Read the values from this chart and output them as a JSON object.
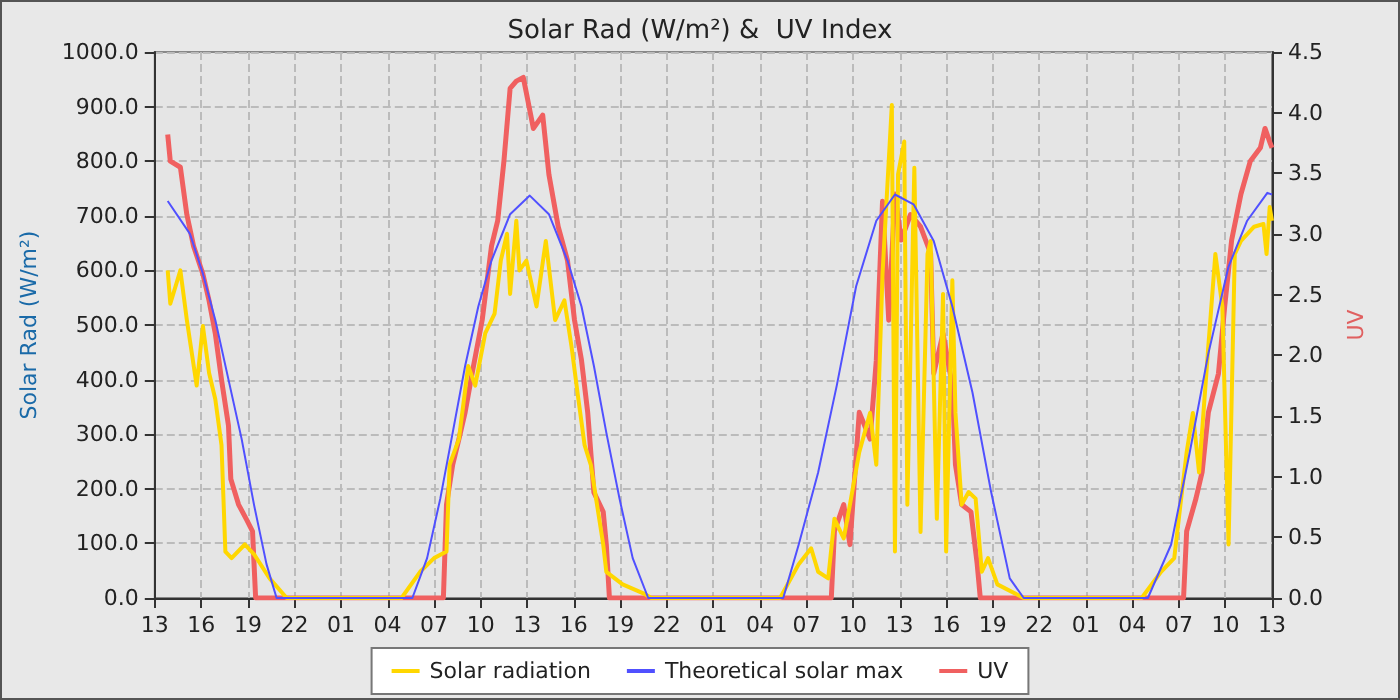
{
  "chart_data": {
    "type": "line",
    "title": "Solar Rad (W/m²) &  UV Index",
    "ylabel": "Solar Rad (W/m²)",
    "y2label": "UV",
    "xlim": [
      "--01-01T13:00",
      "--01-04T13:00"
    ],
    "xticks": [
      {
        "value": "--01-01T13:00",
        "label": "13"
      },
      {
        "value": "--01-01T16:00",
        "label": "16"
      },
      {
        "value": "--01-01T19:00",
        "label": "19"
      },
      {
        "value": "--01-01T22:00",
        "label": "22"
      },
      {
        "value": "--01-02T01:00",
        "label": "01"
      },
      {
        "value": "--01-02T04:00",
        "label": "04"
      },
      {
        "value": "--01-02T07:00",
        "label": "07"
      },
      {
        "value": "--01-02T10:00",
        "label": "10"
      },
      {
        "value": "--01-02T13:00",
        "label": "13"
      },
      {
        "value": "--01-02T16:00",
        "label": "16"
      },
      {
        "value": "--01-02T19:00",
        "label": "19"
      },
      {
        "value": "--01-02T22:00",
        "label": "22"
      },
      {
        "value": "--01-03T01:00",
        "label": "01"
      },
      {
        "value": "--01-03T04:00",
        "label": "04"
      },
      {
        "value": "--01-03T07:00",
        "label": "07"
      },
      {
        "value": "--01-03T10:00",
        "label": "10"
      },
      {
        "value": "--01-03T13:00",
        "label": "13"
      },
      {
        "value": "--01-03T16:00",
        "label": "16"
      },
      {
        "value": "--01-03T19:00",
        "label": "19"
      },
      {
        "value": "--01-03T22:00",
        "label": "22"
      },
      {
        "value": "--01-04T01:00",
        "label": "01"
      },
      {
        "value": "--01-04T04:00",
        "label": "04"
      },
      {
        "value": "--01-04T07:00",
        "label": "07"
      },
      {
        "value": "--01-04T10:00",
        "label": "10"
      },
      {
        "value": "--01-04T13:00",
        "label": "13"
      }
    ],
    "ylim": [
      0,
      1000
    ],
    "yticks": [
      {
        "value": 0,
        "label": "0.0"
      },
      {
        "value": 100,
        "label": "100.0"
      },
      {
        "value": 200,
        "label": "200.0"
      },
      {
        "value": 300,
        "label": "300.0"
      },
      {
        "value": 400,
        "label": "400.0"
      },
      {
        "value": 500,
        "label": "500.0"
      },
      {
        "value": 600,
        "label": "600.0"
      },
      {
        "value": 700,
        "label": "700.0"
      },
      {
        "value": 800,
        "label": "800.0"
      },
      {
        "value": 900,
        "label": "900.0"
      },
      {
        "value": 1000,
        "label": "1000.0"
      }
    ],
    "y2lim": [
      0,
      4.5
    ],
    "y2ticks": [
      {
        "value": 0,
        "label": "0.0"
      },
      {
        "value": 0.5,
        "label": "0.5"
      },
      {
        "value": 1,
        "label": "1.0"
      },
      {
        "value": 1.5,
        "label": "1.5"
      },
      {
        "value": 2,
        "label": "2.0"
      },
      {
        "value": 2.5,
        "label": "2.5"
      },
      {
        "value": 3,
        "label": "3.0"
      },
      {
        "value": 3.5,
        "label": "3.5"
      },
      {
        "value": 4,
        "label": "4.0"
      },
      {
        "value": 4.5,
        "label": "4.5"
      }
    ],
    "grid": true,
    "legend": "bottom",
    "marker": "none",
    "line_style": "solid",
    "series": [
      {
        "name": "Solar radiation",
        "color": "#ffd700",
        "x": [
          "--01-01T13:50",
          "--01-01T14:00",
          "--01-01T14:39",
          "--01-01T15:04",
          "--01-01T15:42",
          "--01-01T16:06",
          "--01-01T16:30",
          "--01-01T16:54",
          "--01-01T17:18",
          "--01-01T17:33",
          "--01-01T17:57",
          "--01-01T18:48",
          "--01-01T19:24",
          "--01-01T20:24",
          "--01-01T21:30",
          "--01-02T04:54",
          "--01-02T06:06",
          "--01-02T07:00",
          "--01-02T07:48",
          "--01-02T08:00",
          "--01-02T08:36",
          "--01-02T09:12",
          "--01-02T09:39",
          "--01-02T10:18",
          "--01-02T10:54",
          "--01-02T11:18",
          "--01-02T11:42",
          "--01-02T11:54",
          "--01-02T12:18",
          "--01-02T12:30",
          "--01-02T12:57",
          "--01-02T13:36",
          "--01-02T14:12",
          "--01-02T14:48",
          "--01-02T15:24",
          "--01-02T15:51",
          "--01-02T16:18",
          "--01-02T16:42",
          "--01-02T17:06",
          "--01-02T17:30",
          "--01-02T17:54",
          "--01-02T18:06",
          "--01-02T19:09",
          "--01-02T20:36",
          "--01-02T21:00",
          "--01-03T05:18",
          "--01-03T06:30",
          "--01-03T07:18",
          "--01-03T07:45",
          "--01-03T08:24",
          "--01-03T08:48",
          "--01-03T09:24",
          "--01-03T09:48",
          "--01-03T10:24",
          "--01-03T11:06",
          "--01-03T11:30",
          "--01-03T11:54",
          "--01-03T12:30",
          "--01-03T12:42",
          "--01-03T12:54",
          "--01-03T13:18",
          "--01-03T13:30",
          "--01-03T13:57",
          "--01-03T14:21",
          "--01-03T14:48",
          "--01-03T15:00",
          "--01-03T15:24",
          "--01-03T15:48",
          "--01-03T16:00",
          "--01-03T16:24",
          "--01-03T16:36",
          "--01-03T17:00",
          "--01-03T17:27",
          "--01-03T17:54",
          "--01-03T18:18",
          "--01-03T18:42",
          "--01-03T19:18",
          "--01-03T21:00",
          "--01-04T04:36",
          "--01-04T05:51",
          "--01-04T06:42",
          "--01-04T07:06",
          "--01-04T07:30",
          "--01-04T07:54",
          "--01-04T08:18",
          "--01-04T08:54",
          "--01-04T09:21",
          "--01-04T09:48",
          "--01-04T10:12",
          "--01-04T10:36",
          "--01-04T11:00",
          "--01-04T11:51",
          "--01-04T12:27",
          "--01-04T12:39",
          "--01-04T12:51",
          "--01-04T13:00"
        ],
        "values": [
          600,
          539,
          600,
          509,
          389,
          498,
          412,
          364,
          280,
          85,
          73,
          98,
          80,
          36,
          0,
          0,
          48,
          73,
          85,
          244,
          291,
          425,
          389,
          485,
          521,
          618,
          667,
          557,
          691,
          600,
          618,
          534,
          654,
          509,
          545,
          462,
          364,
          280,
          244,
          171,
          98,
          48,
          25,
          7,
          0,
          0,
          62,
          91,
          48,
          36,
          145,
          109,
          171,
          267,
          339,
          244,
          594,
          903,
          85,
          776,
          836,
          171,
          788,
          121,
          630,
          654,
          145,
          557,
          85,
          582,
          339,
          171,
          194,
          182,
          48,
          73,
          25,
          0,
          0,
          48,
          73,
          171,
          267,
          339,
          230,
          462,
          630,
          534,
          98,
          630,
          654,
          680,
          685,
          630,
          716,
          691
        ]
      },
      {
        "name": "Theoretical solar max",
        "color": "#5050ff",
        "x": [
          "--01-01T13:50",
          "--01-01T15:16",
          "--01-01T16:06",
          "--01-01T16:54",
          "--01-01T17:45",
          "--01-01T18:36",
          "--01-01T19:24",
          "--01-01T20:12",
          "--01-01T20:51",
          "--01-02T05:36",
          "--01-02T06:33",
          "--01-02T07:24",
          "--01-02T08:12",
          "--01-02T09:00",
          "--01-02T09:51",
          "--01-02T10:42",
          "--01-02T11:54",
          "--01-02T13:10",
          "--01-02T14:24",
          "--01-02T15:36",
          "--01-02T16:30",
          "--01-02T17:18",
          "--01-02T18:06",
          "--01-02T18:57",
          "--01-02T19:48",
          "--01-02T20:48",
          "--01-03T05:30",
          "--01-03T06:30",
          "--01-03T07:45",
          "--01-03T08:57",
          "--01-03T10:12",
          "--01-03T11:30",
          "--01-03T12:42",
          "--01-03T13:54",
          "--01-03T15:12",
          "--01-03T16:24",
          "--01-03T17:42",
          "--01-03T18:54",
          "--01-03T20:06",
          "--01-03T21:00",
          "--01-04T05:00",
          "--01-04T06:30",
          "--01-04T07:42",
          "--01-04T08:54",
          "--01-04T10:12",
          "--01-04T11:24",
          "--01-04T12:42",
          "--01-04T13:00"
        ],
        "values": [
          727,
          667,
          594,
          509,
          400,
          291,
          170,
          62,
          0,
          0,
          73,
          182,
          303,
          425,
          534,
          618,
          703,
          737,
          703,
          618,
          534,
          425,
          303,
          182,
          73,
          0,
          0,
          98,
          230,
          389,
          571,
          691,
          739,
          721,
          654,
          534,
          376,
          194,
          36,
          0,
          0,
          98,
          267,
          448,
          607,
          691,
          742,
          739
        ]
      },
      {
        "name": "UV",
        "color": "#f06060",
        "axis": "y2",
        "x": [
          "--01-01T13:50",
          "--01-01T14:00",
          "--01-01T14:39",
          "--01-01T15:04",
          "--01-01T15:30",
          "--01-01T16:06",
          "--01-01T16:30",
          "--01-01T16:54",
          "--01-01T17:18",
          "--01-01T17:45",
          "--01-01T17:54",
          "--01-01T18:24",
          "--01-01T18:54",
          "--01-01T19:18",
          "--01-01T19:30",
          "--01-02T07:36",
          "--01-02T07:48",
          "--01-02T08:12",
          "--01-02T08:36",
          "--01-02T09:00",
          "--01-02T09:27",
          "--01-02T10:06",
          "--01-02T10:42",
          "--01-02T11:06",
          "--01-02T11:30",
          "--01-02T11:54",
          "--01-02T12:18",
          "--01-02T12:45",
          "--01-02T13:24",
          "--01-02T14:00",
          "--01-02T14:24",
          "--01-02T15:00",
          "--01-02T15:36",
          "--01-02T16:03",
          "--01-02T16:30",
          "--01-02T16:54",
          "--01-02T17:18",
          "--01-02T17:54",
          "--01-02T18:06",
          "--01-02T18:18",
          "--01-03T08:36",
          "--01-03T08:48",
          "--01-03T09:24",
          "--01-03T09:48",
          "--01-03T10:24",
          "--01-03T11:06",
          "--01-03T11:30",
          "--01-03T11:54",
          "--01-03T12:18",
          "--01-03T12:42",
          "--01-03T13:06",
          "--01-03T13:42",
          "--01-03T14:21",
          "--01-03T15:00",
          "--01-03T15:12",
          "--01-03T15:48",
          "--01-03T16:24",
          "--01-03T16:36",
          "--01-03T17:00",
          "--01-03T17:36",
          "--01-03T18:00",
          "--01-03T18:12",
          "--01-04T07:18",
          "--01-04T07:30",
          "--01-04T08:06",
          "--01-04T08:30",
          "--01-04T08:54",
          "--01-04T09:33",
          "--01-04T09:57",
          "--01-04T10:24",
          "--01-04T11:00",
          "--01-04T11:36",
          "--01-04T12:15",
          "--01-04T12:33",
          "--01-04T12:51",
          "--01-04T13:00"
        ],
        "values": [
          3.82,
          3.6,
          3.55,
          3.16,
          2.9,
          2.67,
          2.45,
          2.18,
          1.8,
          1.42,
          0.98,
          0.77,
          0.65,
          0.55,
          0,
          0,
          0.77,
          1.1,
          1.31,
          1.53,
          1.85,
          2.29,
          2.9,
          3.11,
          3.6,
          4.2,
          4.26,
          4.29,
          3.87,
          3.98,
          3.49,
          3.06,
          2.78,
          2.29,
          1.96,
          1.53,
          0.87,
          0.71,
          0.44,
          0,
          0,
          0.55,
          0.77,
          0.44,
          1.53,
          1.31,
          1.96,
          3.27,
          2.29,
          3.33,
          2.95,
          3.16,
          3.06,
          2.84,
          1.85,
          2.18,
          1.75,
          1.1,
          0.77,
          0.71,
          0.28,
          0,
          0,
          0.55,
          0.82,
          1.04,
          1.53,
          1.85,
          2.4,
          2.95,
          3.33,
          3.6,
          3.71,
          3.87,
          3.76,
          3.71
        ]
      }
    ]
  }
}
